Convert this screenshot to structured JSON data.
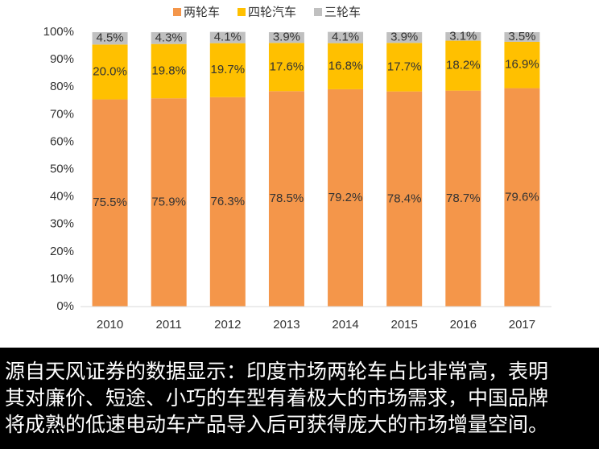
{
  "chart_data": {
    "type": "stacked_bar",
    "categories": [
      "2010",
      "2011",
      "2012",
      "2013",
      "2014",
      "2015",
      "2016",
      "2017"
    ],
    "series": [
      {
        "name": "两轮车",
        "color": "#f4964a",
        "values": [
          75.5,
          75.9,
          76.3,
          78.5,
          79.2,
          78.4,
          78.7,
          79.6
        ],
        "value_labels": [
          "75.5%",
          "75.9%",
          "76.3%",
          "78.5%",
          "79.2%",
          "78.4%",
          "78.7%",
          "79.6%"
        ]
      },
      {
        "name": "四轮汽车",
        "color": "#ffc000",
        "values": [
          20.0,
          19.8,
          19.7,
          17.6,
          16.8,
          17.7,
          18.2,
          16.9
        ],
        "value_labels": [
          "20.0%",
          "19.8%",
          "19.7%",
          "17.6%",
          "16.8%",
          "17.7%",
          "18.2%",
          "16.9%"
        ]
      },
      {
        "name": "三轮车",
        "color": "#c0c0c0",
        "values": [
          4.5,
          4.3,
          4.1,
          3.9,
          4.1,
          3.9,
          3.1,
          3.5
        ],
        "value_labels": [
          "4.5%",
          "4.3%",
          "4.1%",
          "3.9%",
          "4.1%",
          "3.9%",
          "3.1%",
          "3.5%"
        ]
      }
    ],
    "ylim": [
      0,
      100
    ],
    "yticks": [
      {
        "value": 0,
        "label": "0%"
      },
      {
        "value": 10,
        "label": "10%"
      },
      {
        "value": 20,
        "label": "20%"
      },
      {
        "value": 30,
        "label": "30%"
      },
      {
        "value": 40,
        "label": "40%"
      },
      {
        "value": 50,
        "label": "50%"
      },
      {
        "value": 60,
        "label": "60%"
      },
      {
        "value": 70,
        "label": "70%"
      },
      {
        "value": 80,
        "label": "80%"
      },
      {
        "value": 90,
        "label": "90%"
      },
      {
        "value": 100,
        "label": "100%"
      }
    ],
    "legend": "top"
  },
  "caption": {
    "lines": [
      "源自天风证券的数据显示：印度市场两轮车占比非常高，表明",
      "其对廉价、短途、小巧的车型有着极大的市场需求，中国品牌",
      "将成熟的低速电动车产品导入后可获得庞大的市场增量空间。"
    ]
  }
}
